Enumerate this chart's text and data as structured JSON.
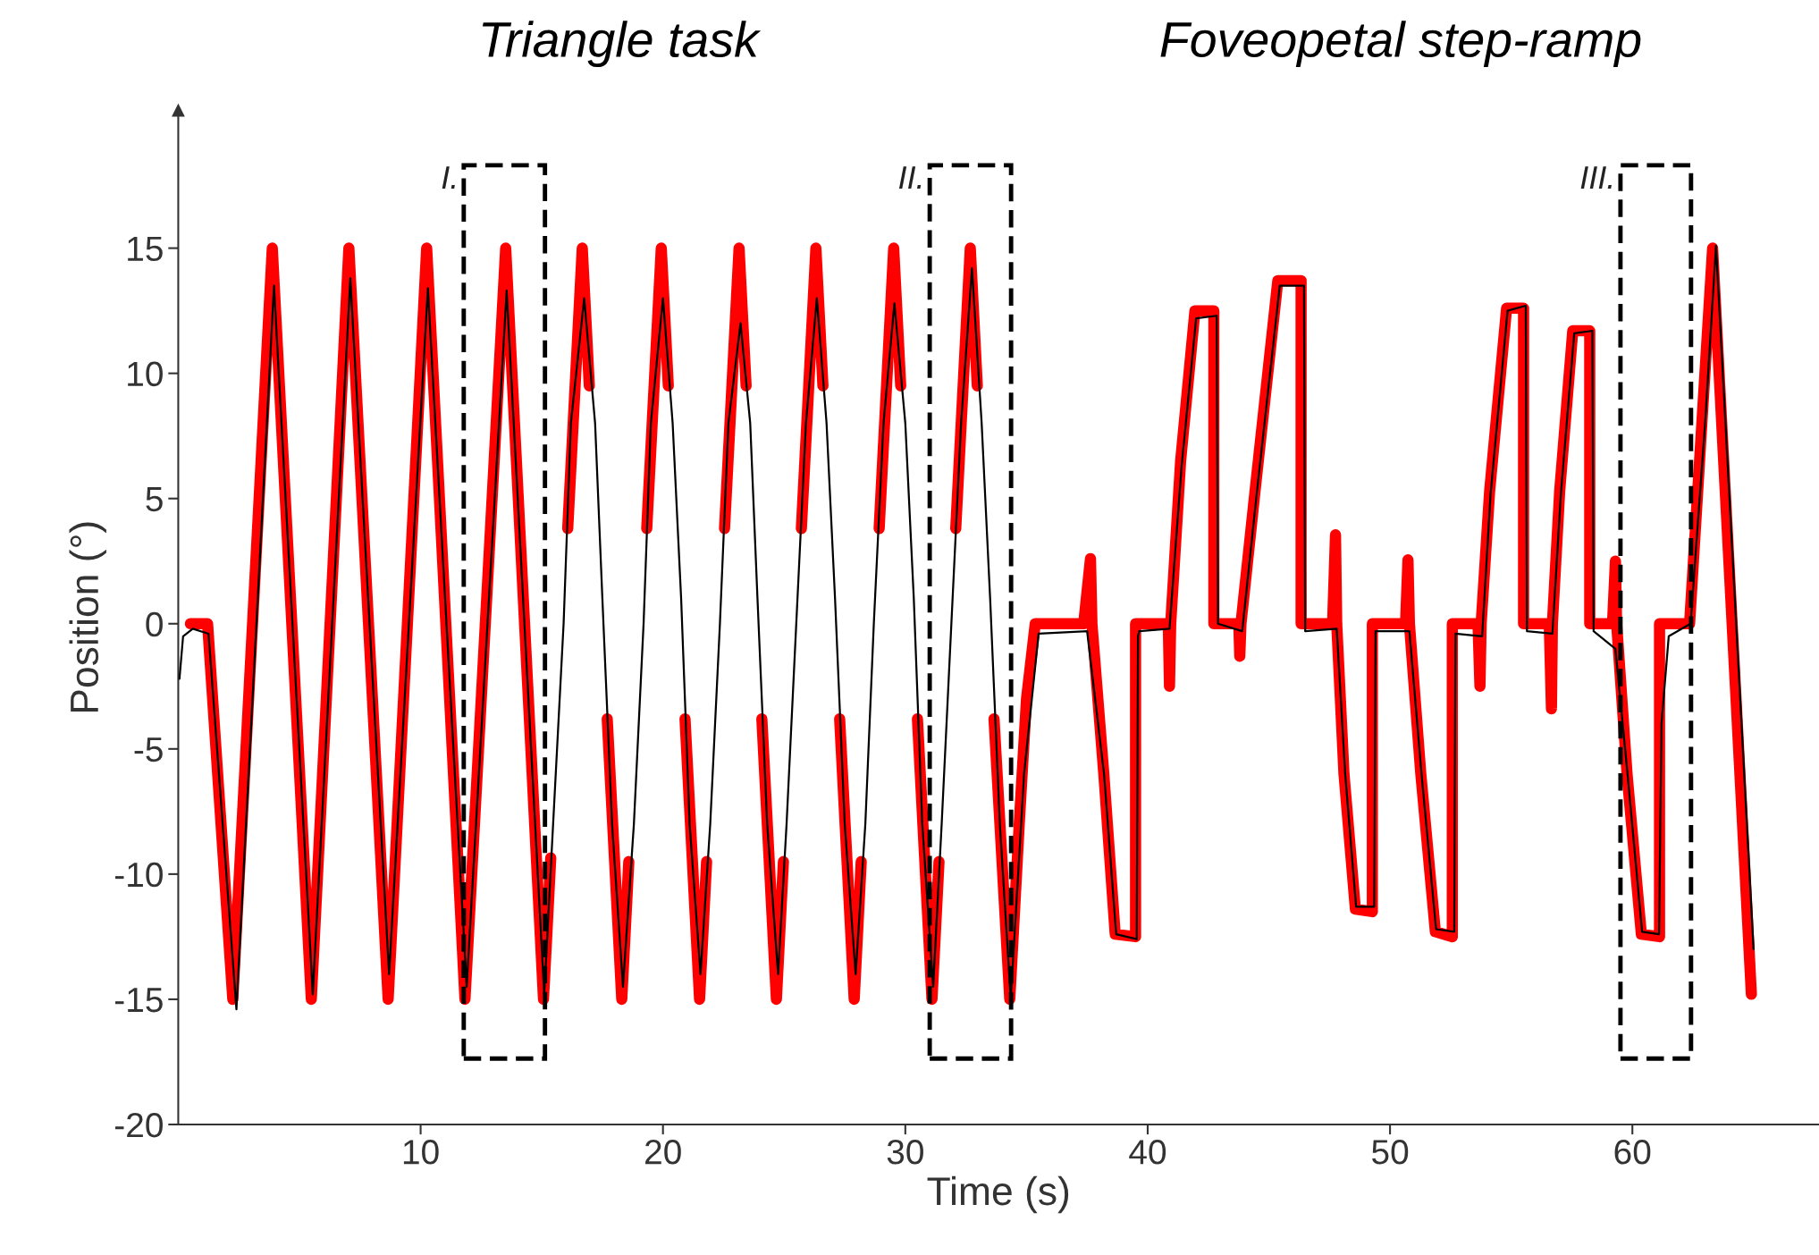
{
  "chart_data": {
    "type": "line",
    "xlabel": "Time (s)",
    "ylabel": "Position (°)",
    "annotations": [
      "Triangle task",
      "Foveopetal step-ramp",
      "I.",
      "II.",
      "III."
    ],
    "xlim": [
      0,
      67.7
    ],
    "ylim": [
      -20,
      20.5
    ],
    "xticks": [
      10,
      20,
      30,
      40,
      50,
      60
    ],
    "yticks": [
      -20,
      -15,
      -10,
      -5,
      0,
      5,
      10,
      15
    ],
    "grid": false,
    "legend": false,
    "series": [
      {
        "color": "#ff0000",
        "x": [
          0.5,
          1.21,
          2.25,
          3.88,
          5.49,
          7.04,
          8.66,
          10.25,
          11.83,
          13.51,
          15.07,
          15.37,
          15.7,
          16.07,
          16.67,
          16.96,
          17.3,
          17.7,
          18.3,
          18.59,
          18.9,
          19.33,
          19.93,
          20.22,
          20.5,
          20.91,
          21.51,
          21.8,
          22.1,
          22.54,
          23.14,
          23.43,
          23.7,
          24.08,
          24.68,
          24.97,
          25.3,
          25.71,
          26.31,
          26.6,
          26.9,
          27.29,
          27.89,
          28.18,
          28.5,
          28.92,
          29.52,
          29.81,
          30.1,
          30.5,
          31.1,
          31.39,
          31.7,
          32.08,
          32.68,
          32.97,
          33.3,
          33.66,
          34.31,
          34.7,
          35.0,
          35.36,
          37.36,
          37.64,
          37.7,
          38.19,
          38.66,
          39.5,
          39.5,
          40.85,
          40.9,
          40.95,
          41.36,
          41.95,
          42.73,
          42.73,
          43.76,
          43.8,
          43.85,
          44.43,
          45.37,
          46.33,
          46.33,
          47.63,
          47.75,
          47.8,
          48.1,
          48.57,
          49.27,
          49.27,
          50.64,
          50.74,
          50.8,
          51.27,
          51.87,
          52.57,
          52.57,
          53.63,
          53.71,
          53.76,
          54.11,
          54.81,
          55.51,
          55.51,
          56.57,
          56.66,
          56.7,
          57.0,
          57.54,
          58.24,
          58.24,
          59.18,
          59.3,
          59.35,
          59.78,
          60.37,
          61.12,
          61.12,
          62.36,
          63.31,
          64.91
        ],
        "values": [
          0,
          0,
          -15,
          15,
          -15,
          15,
          -15,
          15,
          -15,
          15,
          -15,
          -9.35,
          null,
          3.8,
          15,
          9.5,
          null,
          -3.8,
          -15,
          -9.5,
          null,
          3.8,
          15,
          9.5,
          null,
          -3.8,
          -15,
          -9.5,
          null,
          3.8,
          15,
          9.5,
          null,
          -3.8,
          -15,
          -9.5,
          null,
          3.8,
          15,
          9.5,
          null,
          -3.8,
          -15,
          -9.5,
          null,
          3.8,
          15,
          9.5,
          null,
          -3.8,
          -15,
          -9.5,
          null,
          3.8,
          15,
          9.5,
          null,
          -3.8,
          -15,
          -8,
          -3,
          0,
          0,
          2.6,
          0,
          -6,
          -12.4,
          -12.5,
          0,
          0,
          -2.5,
          0,
          6.5,
          12.5,
          12.5,
          0,
          0,
          -1.3,
          0,
          5.3,
          13.7,
          13.7,
          0,
          0,
          3.55,
          0,
          -6,
          -11.4,
          -11.5,
          0,
          0,
          2.55,
          0,
          -6,
          -12.3,
          -12.5,
          0,
          0,
          -2.5,
          0,
          5.3,
          12.6,
          12.6,
          0,
          0,
          -3.4,
          0,
          5.3,
          11.7,
          11.7,
          0,
          0,
          2.5,
          0,
          -6,
          -12.4,
          -12.5,
          0,
          0,
          15,
          -14.8
        ]
      },
      {
        "color": "#000000",
        "x": [
          0.05,
          0.2,
          0.6,
          1.25,
          2.4,
          3.95,
          5.55,
          7.1,
          8.7,
          10.3,
          11.9,
          13.55,
          15.1,
          15.9,
          16.2,
          16.75,
          17.2,
          17.5,
          17.9,
          18.35,
          18.8,
          19.2,
          19.5,
          20.0,
          20.4,
          20.75,
          21.1,
          21.55,
          21.95,
          22.35,
          22.7,
          23.2,
          23.6,
          23.9,
          24.3,
          24.75,
          25.1,
          25.5,
          25.9,
          26.35,
          26.75,
          27.1,
          27.5,
          27.95,
          28.35,
          28.7,
          29.1,
          29.55,
          30.0,
          30.35,
          30.7,
          31.15,
          31.5,
          31.9,
          32.3,
          32.75,
          33.15,
          33.5,
          33.9,
          34.35,
          34.9,
          35.5,
          37.5,
          38.2,
          38.7,
          39.55,
          39.6,
          39.65,
          40.9,
          41.4,
          42.0,
          42.85,
          42.9,
          43.9,
          44.5,
          45.45,
          46.45,
          46.5,
          47.8,
          48.15,
          48.6,
          49.35,
          49.4,
          50.8,
          51.3,
          51.9,
          52.65,
          52.7,
          53.8,
          54.15,
          54.85,
          55.6,
          55.65,
          56.7,
          57.05,
          57.6,
          58.35,
          58.4,
          59.3,
          59.8,
          60.4,
          61.1,
          61.2,
          61.5,
          62.4,
          63.0,
          63.45,
          65.0
        ],
        "values": [
          -2.2,
          -0.5,
          -0.2,
          -0.4,
          -15.4,
          13.5,
          -14.8,
          13.8,
          -14,
          13.4,
          -14.5,
          13.3,
          -14.8,
          0,
          8,
          13.0,
          8,
          1,
          -8,
          -14.5,
          -8,
          0,
          8,
          13.0,
          8,
          1,
          -8,
          -14,
          -8,
          0,
          8,
          12.0,
          8,
          1,
          -8,
          -14,
          -8,
          0,
          8,
          13.0,
          8,
          1,
          -8,
          -14,
          -8,
          0,
          8,
          12.8,
          8,
          1,
          -8,
          -14.5,
          -8,
          0,
          8,
          14.2,
          8,
          1,
          -8,
          -15,
          -6,
          -0.4,
          -0.3,
          -6,
          -12.4,
          -12.6,
          -0.5,
          -0.3,
          -0.2,
          6.3,
          12.2,
          12.3,
          0,
          -0.3,
          5.2,
          13.5,
          13.5,
          -0.3,
          -0.2,
          -6,
          -11.3,
          -11.3,
          -0.3,
          -0.3,
          -6,
          -12.2,
          -12.3,
          -0.4,
          -0.5,
          5.2,
          12.5,
          12.7,
          -0.3,
          -0.4,
          5.2,
          11.6,
          11.7,
          -0.3,
          -1,
          -6,
          -12.3,
          -12.4,
          -4,
          -0.5,
          0,
          8,
          15.1,
          -13
        ]
      }
    ]
  }
}
